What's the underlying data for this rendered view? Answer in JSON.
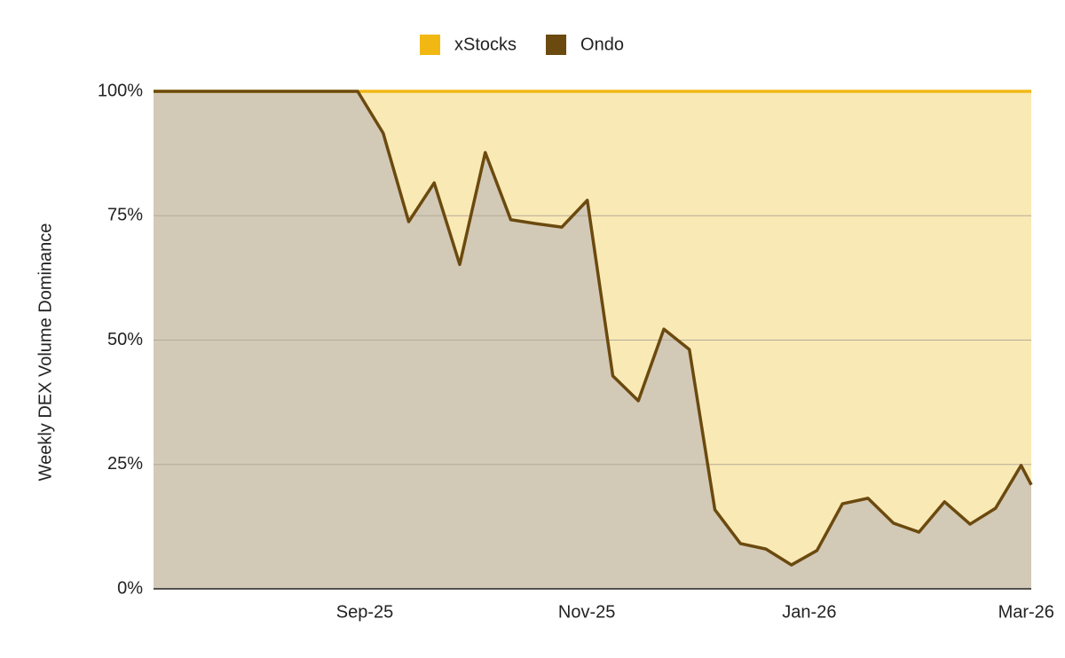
{
  "chart_data": {
    "type": "stacked_area",
    "y_label": "Weekly DEX Volume Dominance",
    "x": [
      0,
      1,
      2,
      3,
      4,
      5,
      6,
      7,
      8,
      9,
      10,
      11,
      12,
      13,
      14,
      15,
      16,
      17,
      18,
      19,
      20,
      21,
      22,
      23,
      24,
      25,
      26,
      27,
      28,
      29,
      30,
      31,
      32,
      33,
      34,
      34.4
    ],
    "series": [
      {
        "name": "Ondo",
        "color": "#6b4a0f",
        "fill": "#d3c9b7",
        "values": [
          100,
          100,
          100,
          100,
          100,
          100,
          100,
          100,
          100,
          91.6,
          73.8,
          81.6,
          65.2,
          87.7,
          74.2,
          73.4,
          72.7,
          78.1,
          42.8,
          37.8,
          52.2,
          48.1,
          15.9,
          9.1,
          8.0,
          4.8,
          7.7,
          17.1,
          18.2,
          13.2,
          11.4,
          17.5,
          13.0,
          16.2,
          24.8,
          20.9
        ]
      },
      {
        "name": "xStocks",
        "color": "#f1b814",
        "fill": "#f9e9b5",
        "values": [
          0,
          0,
          0,
          0,
          0,
          0,
          0,
          0,
          0,
          8.4,
          26.2,
          18.4,
          34.8,
          12.3,
          25.8,
          26.6,
          27.3,
          21.9,
          57.2,
          62.2,
          47.8,
          51.9,
          84.1,
          90.9,
          92.0,
          95.2,
          92.3,
          82.9,
          81.8,
          86.8,
          88.6,
          82.5,
          87.0,
          83.8,
          75.2,
          79.1
        ]
      }
    ],
    "legend_order": [
      1,
      0
    ],
    "xlim": [
      0,
      34.4
    ],
    "xticks": [
      {
        "value": 8.28,
        "label": "Sep-25"
      },
      {
        "value": 16.98,
        "label": "Nov-25"
      },
      {
        "value": 25.7,
        "label": "Jan-26"
      },
      {
        "value": 34.2,
        "label": "Mar-26"
      }
    ],
    "ylim": [
      0,
      100
    ],
    "yticks": [
      {
        "value": 0,
        "label": "0%"
      },
      {
        "value": 25,
        "label": "25%"
      },
      {
        "value": 50,
        "label": "50%"
      },
      {
        "value": 75,
        "label": "75%"
      },
      {
        "value": 100,
        "label": "100%"
      }
    ],
    "grid": true
  }
}
